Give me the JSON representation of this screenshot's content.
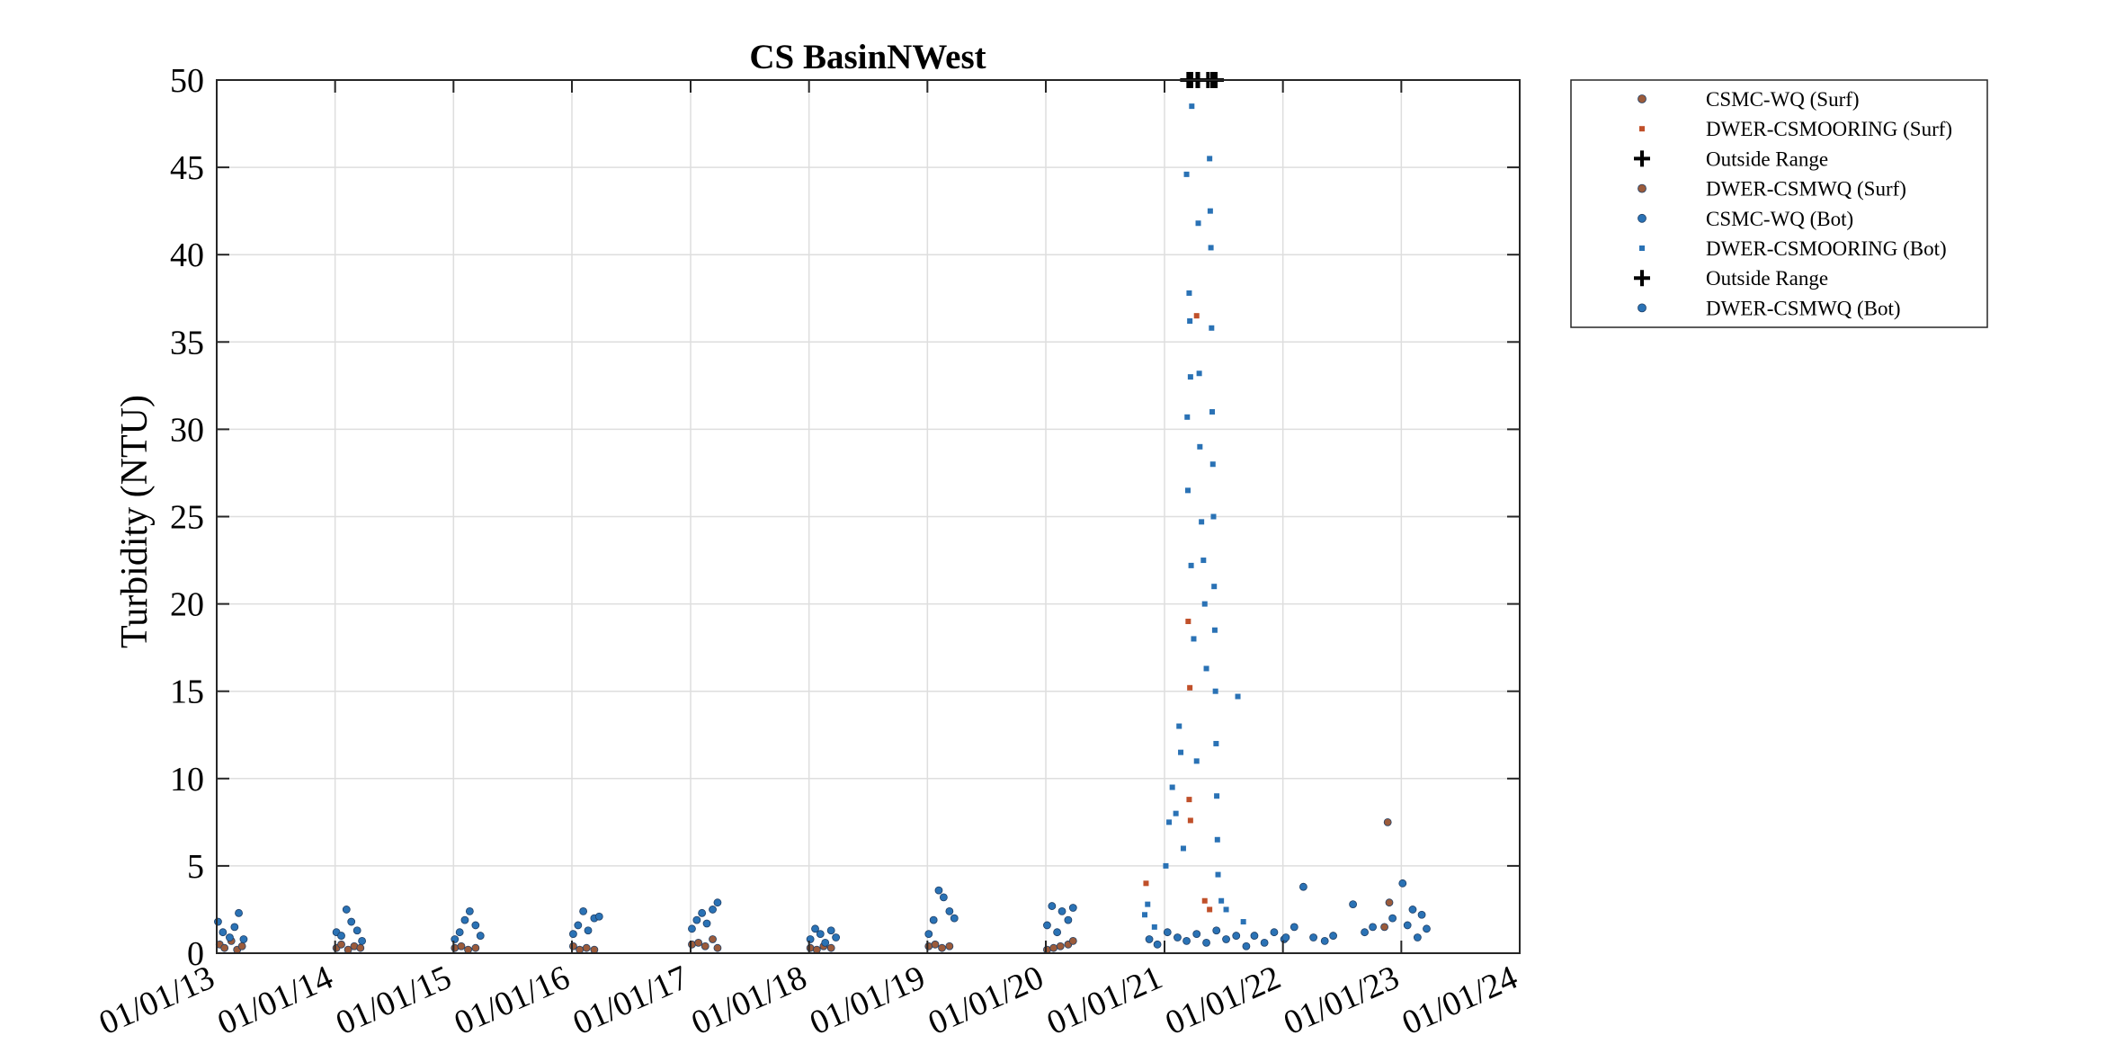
{
  "chart_data": {
    "type": "scatter",
    "title": "CS BasinNWest",
    "ylabel": "Turbidity (NTU)",
    "xlabel": "",
    "ylim": [
      0,
      50
    ],
    "yticks": [
      0,
      5,
      10,
      15,
      20,
      25,
      30,
      35,
      40,
      45,
      50
    ],
    "yticklabels": [
      "0",
      "5",
      "10",
      "15",
      "20",
      "25",
      "30",
      "35",
      "40",
      "45",
      "50"
    ],
    "xlim": [
      "2013-01-01",
      "2024-01-01"
    ],
    "xticks": [
      "2013-01-01",
      "2014-01-01",
      "2015-01-01",
      "2016-01-01",
      "2017-01-01",
      "2018-01-01",
      "2019-01-01",
      "2020-01-01",
      "2021-01-01",
      "2022-01-01",
      "2023-01-01",
      "2024-01-01"
    ],
    "xticklabels": [
      "01/01/13",
      "01/01/14",
      "01/01/15",
      "01/01/16",
      "01/01/17",
      "01/01/18",
      "01/01/19",
      "01/01/20",
      "01/01/21",
      "01/01/22",
      "01/01/23",
      "01/01/24"
    ],
    "grid": true,
    "legend_position": "outside-top-right",
    "series": [
      {
        "name": "CSMC-WQ (Surf)",
        "marker": "circle",
        "color": "#9B5B3B",
        "points": [
          [
            "2013-01-10",
            0.5
          ],
          [
            "2013-01-25",
            0.3
          ],
          [
            "2013-02-15",
            0.7
          ],
          [
            "2013-03-05",
            0.2
          ],
          [
            "2013-03-20",
            0.4
          ],
          [
            "2014-01-05",
            0.3
          ],
          [
            "2014-01-20",
            0.5
          ],
          [
            "2014-02-10",
            0.2
          ],
          [
            "2014-03-01",
            0.4
          ],
          [
            "2014-03-20",
            0.3
          ],
          [
            "2015-01-05",
            0.3
          ],
          [
            "2015-01-25",
            0.4
          ],
          [
            "2015-02-15",
            0.2
          ],
          [
            "2015-03-10",
            0.3
          ],
          [
            "2016-01-05",
            0.4
          ],
          [
            "2016-01-25",
            0.2
          ],
          [
            "2016-02-15",
            0.3
          ],
          [
            "2016-03-10",
            0.2
          ],
          [
            "2017-01-05",
            0.5
          ],
          [
            "2017-01-25",
            0.6
          ],
          [
            "2017-02-15",
            0.4
          ],
          [
            "2017-03-10",
            0.8
          ],
          [
            "2017-03-25",
            0.3
          ],
          [
            "2018-01-05",
            0.3
          ],
          [
            "2018-01-25",
            0.2
          ],
          [
            "2018-02-15",
            0.4
          ],
          [
            "2018-03-10",
            0.3
          ],
          [
            "2019-01-05",
            0.4
          ],
          [
            "2019-01-25",
            0.5
          ],
          [
            "2019-02-15",
            0.3
          ],
          [
            "2019-03-10",
            0.4
          ],
          [
            "2020-01-05",
            0.2
          ],
          [
            "2020-01-25",
            0.3
          ],
          [
            "2020-02-15",
            0.4
          ],
          [
            "2020-03-10",
            0.5
          ],
          [
            "2020-03-25",
            0.7
          ],
          [
            "2022-11-20",
            7.5
          ],
          [
            "2022-11-25",
            2.9
          ],
          [
            "2022-11-10",
            1.5
          ]
        ]
      },
      {
        "name": "DWER-CSMOORING (Surf)",
        "marker": "square",
        "color": "#C0502A",
        "points": [
          [
            "2020-11-05",
            4.0
          ],
          [
            "2021-04-10",
            36.5
          ],
          [
            "2021-03-15",
            19.0
          ],
          [
            "2021-03-20",
            15.2
          ],
          [
            "2021-03-18",
            8.8
          ],
          [
            "2021-03-22",
            7.6
          ],
          [
            "2021-05-05",
            3.0
          ],
          [
            "2021-05-20",
            2.5
          ]
        ]
      },
      {
        "name": "Outside Range",
        "marker": "plus",
        "color": "#000000",
        "points": [
          [
            "2021-03-15",
            50
          ],
          [
            "2021-03-25",
            50
          ],
          [
            "2021-04-12",
            50
          ],
          [
            "2021-05-15",
            50
          ],
          [
            "2021-06-08",
            50
          ]
        ]
      },
      {
        "name": "DWER-CSMWQ (Surf)",
        "marker": "circle",
        "color": "#9B5B3B",
        "points": []
      },
      {
        "name": "CSMC-WQ (Bot)",
        "marker": "circle",
        "color": "#2A72B5",
        "points": [
          [
            "2013-01-05",
            1.8
          ],
          [
            "2013-01-20",
            1.2
          ],
          [
            "2013-02-10",
            0.9
          ],
          [
            "2013-02-25",
            1.5
          ],
          [
            "2013-03-10",
            2.3
          ],
          [
            "2013-03-25",
            0.8
          ],
          [
            "2014-01-05",
            1.2
          ],
          [
            "2014-01-20",
            1.0
          ],
          [
            "2014-02-05",
            2.5
          ],
          [
            "2014-02-20",
            1.8
          ],
          [
            "2014-03-10",
            1.3
          ],
          [
            "2014-03-25",
            0.7
          ],
          [
            "2015-01-05",
            0.8
          ],
          [
            "2015-01-20",
            1.2
          ],
          [
            "2015-02-05",
            1.9
          ],
          [
            "2015-02-20",
            2.4
          ],
          [
            "2015-03-10",
            1.6
          ],
          [
            "2015-03-25",
            1.0
          ],
          [
            "2016-01-05",
            1.1
          ],
          [
            "2016-01-20",
            1.6
          ],
          [
            "2016-02-05",
            2.4
          ],
          [
            "2016-02-20",
            1.3
          ],
          [
            "2016-03-10",
            2.0
          ],
          [
            "2016-03-25",
            2.1
          ],
          [
            "2017-01-05",
            1.4
          ],
          [
            "2017-01-20",
            1.9
          ],
          [
            "2017-02-05",
            2.3
          ],
          [
            "2017-02-20",
            1.7
          ],
          [
            "2017-03-10",
            2.5
          ],
          [
            "2017-03-25",
            2.9
          ],
          [
            "2018-01-05",
            0.8
          ],
          [
            "2018-01-20",
            1.4
          ],
          [
            "2018-02-05",
            1.1
          ],
          [
            "2018-02-20",
            0.6
          ],
          [
            "2018-03-10",
            1.3
          ],
          [
            "2018-03-25",
            0.9
          ],
          [
            "2019-01-05",
            1.1
          ],
          [
            "2019-01-20",
            1.9
          ],
          [
            "2019-02-05",
            3.6
          ],
          [
            "2019-02-20",
            3.2
          ],
          [
            "2019-03-10",
            2.4
          ],
          [
            "2019-03-25",
            2.0
          ],
          [
            "2020-01-05",
            1.6
          ],
          [
            "2020-01-20",
            2.7
          ],
          [
            "2020-02-05",
            1.2
          ],
          [
            "2020-02-20",
            2.4
          ],
          [
            "2020-03-10",
            1.9
          ],
          [
            "2020-03-25",
            2.6
          ],
          [
            "2021-10-05",
            1.0
          ],
          [
            "2021-11-05",
            0.6
          ],
          [
            "2021-12-05",
            1.2
          ],
          [
            "2022-01-05",
            0.8
          ],
          [
            "2022-02-05",
            1.5
          ],
          [
            "2022-03-05",
            3.8
          ],
          [
            "2022-04-05",
            0.9
          ],
          [
            "2022-06-05",
            1.0
          ],
          [
            "2022-08-05",
            2.8
          ],
          [
            "2022-10-05",
            1.5
          ],
          [
            "2022-12-05",
            2.0
          ],
          [
            "2023-01-05",
            4.0
          ],
          [
            "2023-02-05",
            2.5
          ],
          [
            "2023-03-05",
            2.2
          ]
        ]
      },
      {
        "name": "DWER-CSMOORING (Bot)",
        "marker": "square",
        "color": "#2A72B5",
        "points": [
          [
            "2020-11-01",
            2.2
          ],
          [
            "2020-11-10",
            2.8
          ],
          [
            "2020-12-01",
            1.5
          ],
          [
            "2021-01-05",
            5.0
          ],
          [
            "2021-01-15",
            7.5
          ],
          [
            "2021-01-25",
            9.5
          ],
          [
            "2021-02-05",
            8.0
          ],
          [
            "2021-02-15",
            13.0
          ],
          [
            "2021-02-20",
            11.5
          ],
          [
            "2021-02-28",
            6.0
          ],
          [
            "2021-03-10",
            44.6
          ],
          [
            "2021-03-12",
            30.7
          ],
          [
            "2021-03-14",
            26.5
          ],
          [
            "2021-03-18",
            37.8
          ],
          [
            "2021-03-20",
            36.2
          ],
          [
            "2021-03-22",
            33.0
          ],
          [
            "2021-03-24",
            22.2
          ],
          [
            "2021-03-26",
            48.5
          ],
          [
            "2021-04-01",
            18.0
          ],
          [
            "2021-04-10",
            11.0
          ],
          [
            "2021-04-15",
            41.8
          ],
          [
            "2021-04-18",
            33.2
          ],
          [
            "2021-04-20",
            29.0
          ],
          [
            "2021-04-25",
            24.7
          ],
          [
            "2021-05-01",
            22.5
          ],
          [
            "2021-05-05",
            20.0
          ],
          [
            "2021-05-10",
            16.3
          ],
          [
            "2021-05-20",
            45.5
          ],
          [
            "2021-05-22",
            42.5
          ],
          [
            "2021-05-24",
            40.4
          ],
          [
            "2021-05-26",
            35.8
          ],
          [
            "2021-05-28",
            31.0
          ],
          [
            "2021-05-30",
            28.0
          ],
          [
            "2021-06-01",
            25.0
          ],
          [
            "2021-06-03",
            21.0
          ],
          [
            "2021-06-05",
            18.5
          ],
          [
            "2021-06-07",
            15.0
          ],
          [
            "2021-06-09",
            12.0
          ],
          [
            "2021-06-11",
            9.0
          ],
          [
            "2021-06-13",
            6.5
          ],
          [
            "2021-06-15",
            4.5
          ],
          [
            "2021-06-25",
            3.0
          ],
          [
            "2021-07-10",
            2.5
          ],
          [
            "2021-08-15",
            14.7
          ],
          [
            "2021-09-01",
            1.8
          ]
        ]
      },
      {
        "name": "Outside Range",
        "marker": "plus",
        "color": "#000000",
        "points": [
          [
            "2021-03-18",
            50
          ],
          [
            "2021-04-15",
            50
          ],
          [
            "2021-05-28",
            50
          ]
        ]
      },
      {
        "name": "DWER-CSMWQ (Bot)",
        "marker": "circle",
        "color": "#2A72B5",
        "points": [
          [
            "2020-11-15",
            0.8
          ],
          [
            "2020-12-10",
            0.5
          ],
          [
            "2021-01-10",
            1.2
          ],
          [
            "2021-02-10",
            0.9
          ],
          [
            "2021-03-10",
            0.7
          ],
          [
            "2021-04-10",
            1.1
          ],
          [
            "2021-05-10",
            0.6
          ],
          [
            "2021-06-10",
            1.3
          ],
          [
            "2021-07-10",
            0.8
          ],
          [
            "2021-08-10",
            1.0
          ],
          [
            "2021-09-10",
            0.4
          ],
          [
            "2022-01-10",
            0.9
          ],
          [
            "2022-05-10",
            0.7
          ],
          [
            "2022-09-10",
            1.2
          ],
          [
            "2023-01-20",
            1.6
          ],
          [
            "2023-02-20",
            0.9
          ],
          [
            "2023-03-20",
            1.4
          ]
        ]
      }
    ]
  }
}
